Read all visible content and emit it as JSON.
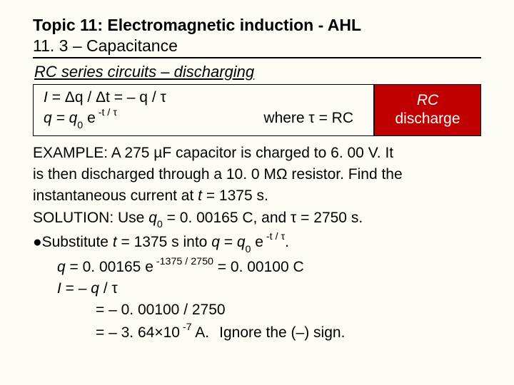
{
  "title": "Topic 11: Electromagnetic induction - AHL",
  "subtitle": "11. 3 – Capacitance",
  "sectionHead": "RC series circuits – discharging",
  "formula": {
    "line1_I": "I",
    "line1_eq": "= Δq / Δt  = – q / τ",
    "line2_q": "q = q",
    "line2_zero": "0",
    "line2_e": " e",
    "line2_exp": " -t / τ",
    "where": "where τ = RC"
  },
  "rcBox": {
    "line1": "RC",
    "line2": "discharge"
  },
  "example": {
    "l1": "EXAMPLE: A 275 µF capacitor is charged to 6. 00 V. It",
    "l2": "is then discharged through a 10. 0 MΩ resistor. Find the",
    "l3a": "instantaneous current at ",
    "l3b": "t",
    "l3c": " = 1375 s.",
    "sol_a": "SOLUTION: Use ",
    "sol_q": "q",
    "sol_zero": "0",
    "sol_b": " = 0. 00165 C, and τ = 2750 s.",
    "sub_a": "Substitute ",
    "sub_t": "t",
    "sub_b": " = 1375 s into ",
    "sub_q": "q",
    "sub_c": " = ",
    "sub_q0": "q",
    "sub_zero2": "0",
    "sub_e": " e",
    "sub_exp": " -t / τ",
    "sub_d": ".",
    "calc1_q": "q",
    "calc1_a": "  = 0. 00165 e",
    "calc1_exp": " -1375 / 2750",
    "calc1_b": " = 0. 00100 C",
    "calc2_I": "I",
    "calc2_a": "  = – ",
    "calc2_q": "q",
    "calc2_b": " / τ",
    "calc3": "= – 0. 00100 / 2750",
    "calc4a": "= – 3. 64",
    "calc4_times": "×",
    "calc4b": "10",
    "calc4_exp": " -7",
    "calc4c": " A.",
    "ignore": "Ignore the (–) sign."
  }
}
